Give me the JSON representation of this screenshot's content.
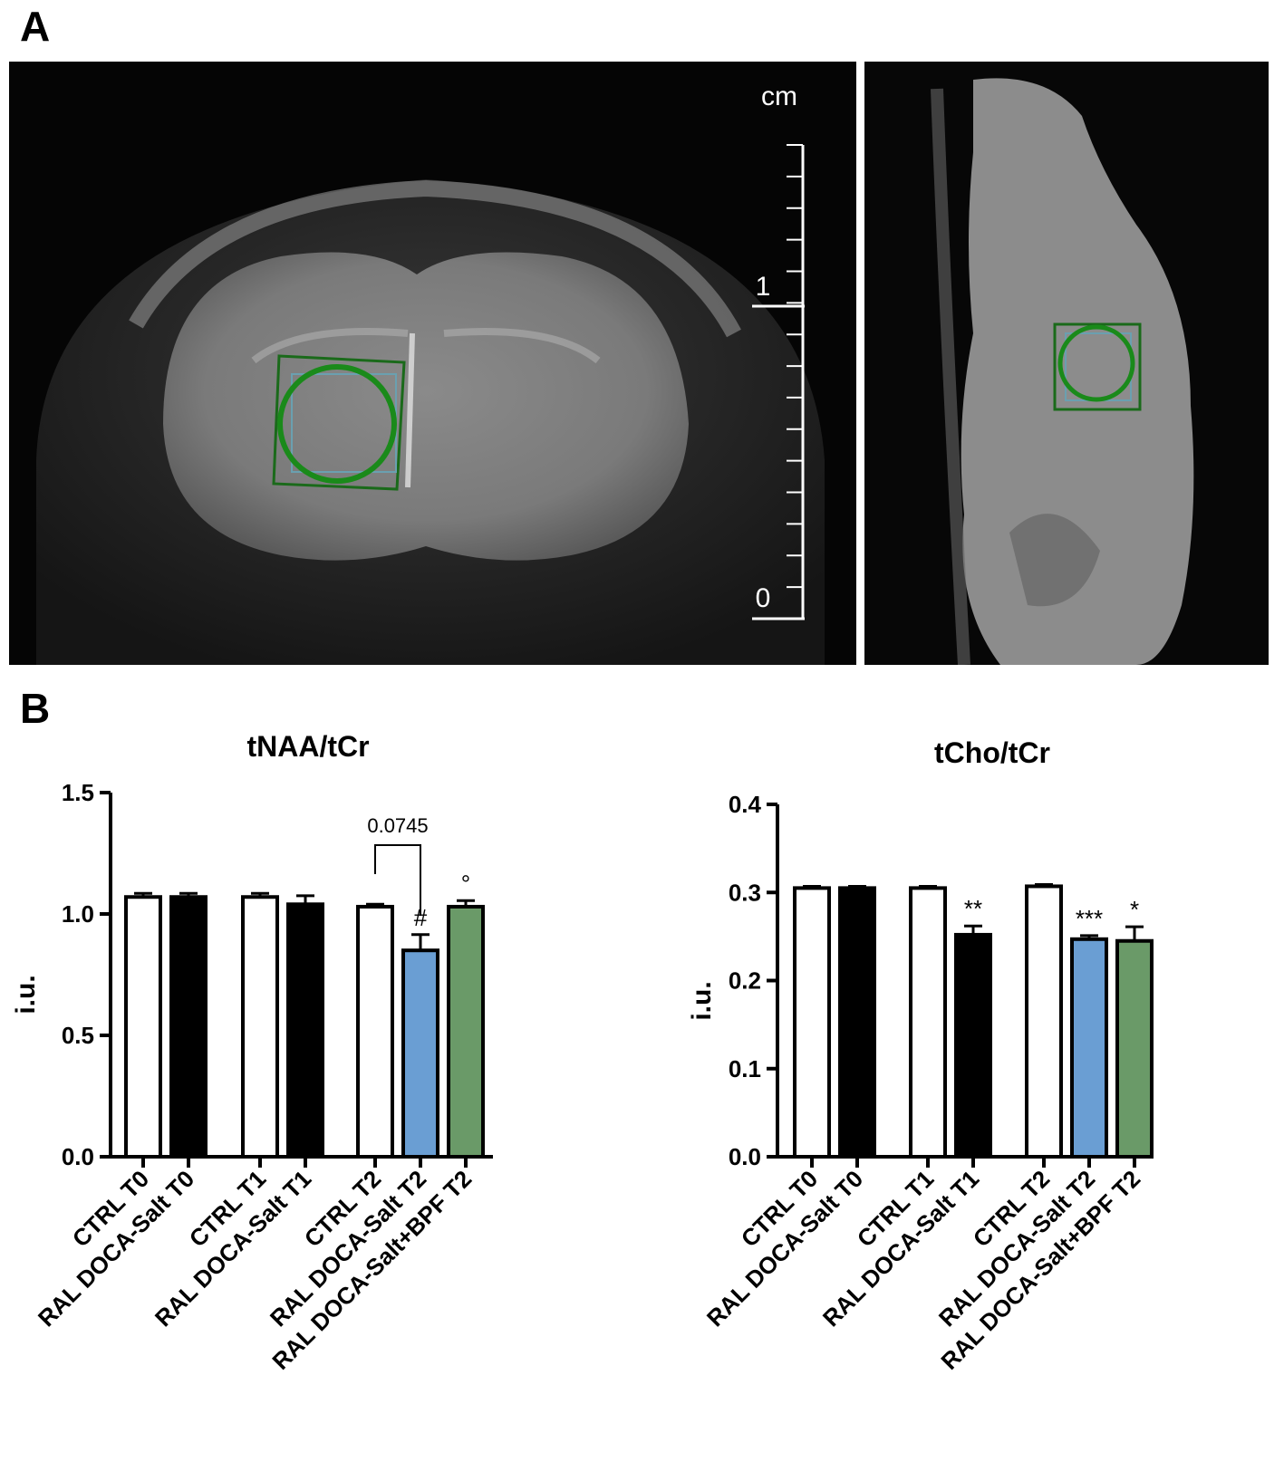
{
  "panels": {
    "a": "A",
    "b": "B"
  },
  "mri": {
    "scale_unit": "cm",
    "scale_top": "1",
    "scale_bottom": "0"
  },
  "colors": {
    "white_bar": "#ffffff",
    "black_bar": "#000000",
    "blue_bar": "#6a9ed3",
    "green_bar": "#6a9a68",
    "roi_green": "#1a8a1a"
  },
  "chart_data": [
    {
      "type": "bar",
      "title": "tNAA/tCr",
      "ylabel": "i.u.",
      "ylim": [
        0,
        1.5
      ],
      "yticks": [
        "0.0",
        "0.5",
        "1.0",
        "1.5"
      ],
      "categories": [
        "CTRL T0",
        "RAL DOCA-Salt T0",
        "CTRL T1",
        "RAL DOCA-Salt T1",
        "CTRL T2",
        "RAL DOCA-Salt T2",
        "RAL DOCA-Salt+BPF T2"
      ],
      "values": [
        1.07,
        1.07,
        1.07,
        1.04,
        1.03,
        0.85,
        1.03
      ],
      "errors": [
        0.015,
        0.015,
        0.015,
        0.035,
        0.01,
        0.065,
        0.025
      ],
      "fill": [
        "white",
        "black",
        "white",
        "black",
        "white",
        "blue",
        "green"
      ],
      "marks": [
        "",
        "",
        "",
        "",
        "",
        "#",
        "°"
      ],
      "bracket": {
        "from": 4,
        "to": 5,
        "label": "0.0745"
      }
    },
    {
      "type": "bar",
      "title": "tCho/tCr",
      "ylabel": "i.u.",
      "ylim": [
        0,
        0.4
      ],
      "yticks": [
        "0.0",
        "0.1",
        "0.2",
        "0.3",
        "0.4"
      ],
      "categories": [
        "CTRL T0",
        "RAL DOCA-Salt T0",
        "CTRL T1",
        "RAL DOCA-Salt T1",
        "CTRL T2",
        "RAL DOCA-Salt T2",
        "RAL DOCA-Salt+BPF T2"
      ],
      "values": [
        0.305,
        0.305,
        0.305,
        0.252,
        0.307,
        0.247,
        0.245
      ],
      "errors": [
        0.002,
        0.002,
        0.002,
        0.01,
        0.002,
        0.004,
        0.016
      ],
      "fill": [
        "white",
        "black",
        "white",
        "black",
        "white",
        "blue",
        "green"
      ],
      "marks": [
        "",
        "",
        "",
        "**",
        "",
        "***",
        "*"
      ]
    }
  ]
}
